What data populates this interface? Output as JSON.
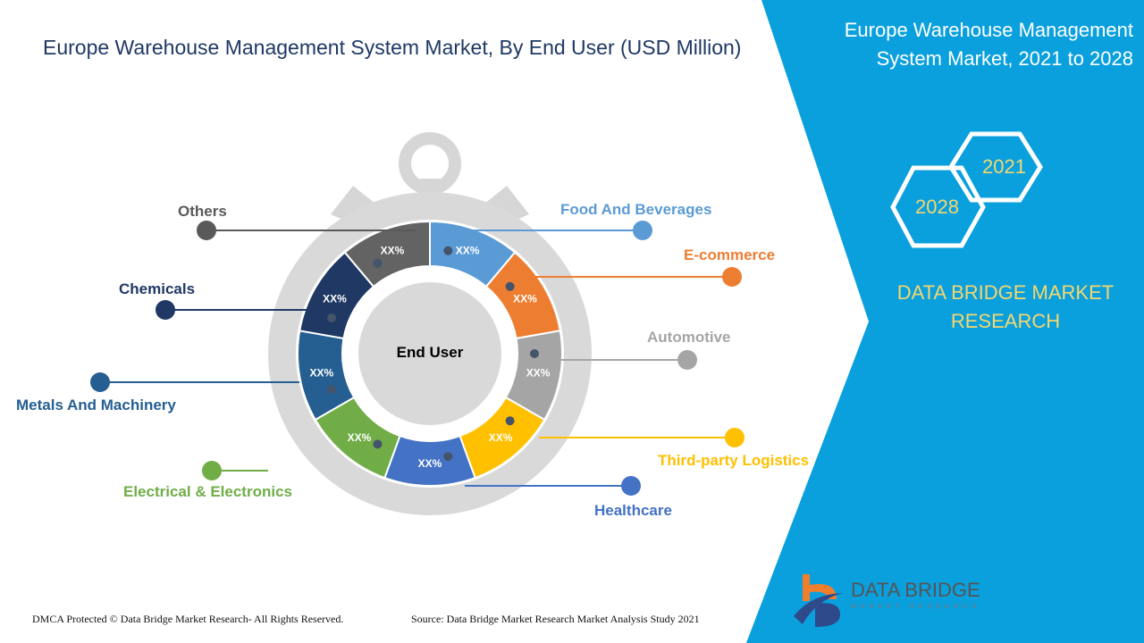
{
  "title": "Europe Warehouse Management System Market, By End User (USD Million)",
  "right_panel": {
    "title": "Europe Warehouse Management System Market, 2021 to 2028",
    "year_start": "2021",
    "year_end": "2028",
    "brand": "DATA BRIDGE MARKET RESEARCH",
    "logo_title": "DATA BRIDGE",
    "logo_subtitle": "MARKET RESEARCH"
  },
  "diagram": {
    "center_label": "End User",
    "segments": [
      {
        "name": "Food And Beverages",
        "value_label": "XX%",
        "color": "#5b9bd5"
      },
      {
        "name": "E-commerce",
        "value_label": "XX%",
        "color": "#ed7d31"
      },
      {
        "name": "Automotive",
        "value_label": "XX%",
        "color": "#a5a5a5"
      },
      {
        "name": "Third-party  Logistics",
        "value_label": "XX%",
        "color": "#ffc000"
      },
      {
        "name": "Healthcare",
        "value_label": "XX%",
        "color": "#4472c4"
      },
      {
        "name": "Electrical & Electronics",
        "value_label": "XX%",
        "color": "#70ad47"
      },
      {
        "name": "Metals And Machinery",
        "value_label": "XX%",
        "color": "#255e91"
      },
      {
        "name": "Chemicals",
        "value_label": "XX%",
        "color": "#1f3864"
      },
      {
        "name": "Others",
        "value_label": "XX%",
        "color": "#636363"
      }
    ]
  },
  "footer": {
    "copyright": "DMCA Protected © Data Bridge Market Research- All Rights Reserved.",
    "source": "Source: Data Bridge Market Research Market Analysis Study 2021"
  }
}
